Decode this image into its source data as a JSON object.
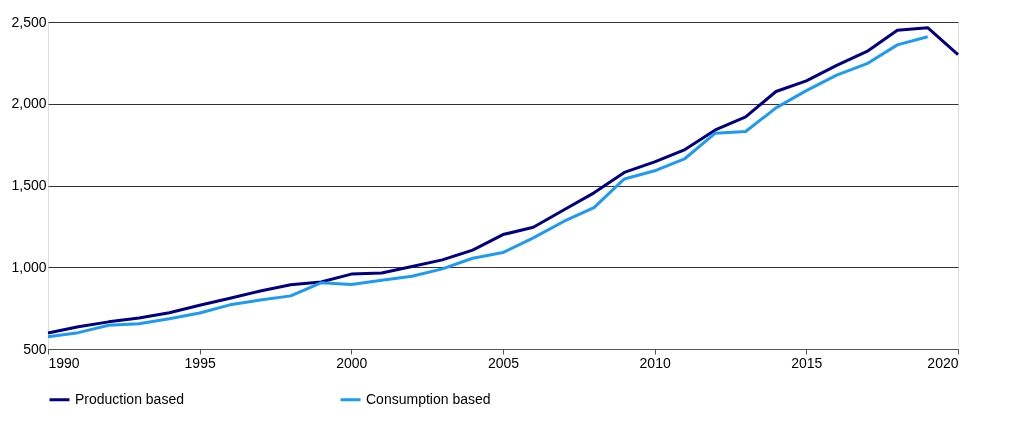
{
  "chart_data": {
    "type": "line",
    "x": [
      1990,
      1991,
      1992,
      1993,
      1994,
      1995,
      1996,
      1997,
      1998,
      1999,
      2000,
      2001,
      2002,
      2003,
      2004,
      2005,
      2006,
      2007,
      2008,
      2009,
      2010,
      2011,
      2012,
      2013,
      2014,
      2015,
      2016,
      2017,
      2018,
      2019,
      2020
    ],
    "series": [
      {
        "name": "Production based",
        "color": "#000080",
        "values": [
          598,
          636,
          666,
          690,
          722,
          768,
          810,
          855,
          893,
          910,
          958,
          965,
          1005,
          1045,
          1105,
          1200,
          1245,
          1350,
          1455,
          1580,
          1645,
          1720,
          1840,
          1920,
          2075,
          2140,
          2235,
          2320,
          2450,
          2465,
          2300
        ]
      },
      {
        "name": "Consumption based",
        "color": "#1e9bf0",
        "values": [
          575,
          600,
          645,
          655,
          685,
          720,
          770,
          800,
          825,
          905,
          895,
          920,
          945,
          990,
          1055,
          1090,
          1180,
          1280,
          1365,
          1540,
          1590,
          1665,
          1820,
          1830,
          1975,
          2080,
          2175,
          2245,
          2360,
          2410,
          null
        ]
      }
    ],
    "xlim": [
      1990,
      2020
    ],
    "xticks": [
      1990,
      1995,
      2000,
      2005,
      2010,
      2015,
      2020
    ],
    "ylim": [
      500,
      2500
    ],
    "yticks": [
      500,
      {
        "value": 1000,
        "label": "1,000"
      },
      {
        "value": 1500,
        "label": "1,500"
      },
      {
        "value": 2000,
        "label": "2,000"
      },
      {
        "value": 2500,
        "label": "2,500"
      }
    ],
    "grid": "y",
    "legend": "bottom",
    "marker": "none",
    "line_style": "solid"
  }
}
